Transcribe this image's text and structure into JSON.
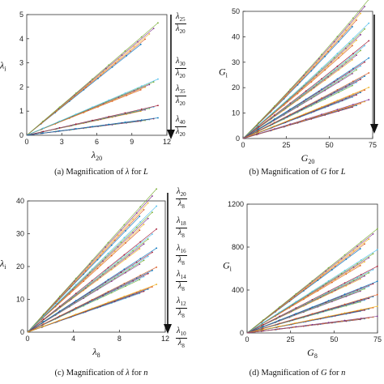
{
  "captions": {
    "a": {
      "pre": "(a) Magnification of ",
      "sym": "λ",
      "mid": " for ",
      "var": "L"
    },
    "b": {
      "pre": "(b) Magnification of ",
      "sym": "G",
      "mid": " for ",
      "var": "L"
    },
    "c": {
      "pre": "(c) Magnification of ",
      "sym": "λ",
      "mid": " for ",
      "var": "n"
    },
    "d": {
      "pre": "(d) Magnification of ",
      "sym": "G",
      "mid": " for ",
      "var": "n"
    }
  },
  "annotations_a": [
    {
      "num_sym": "λ",
      "num_sub": "25",
      "den_sym": "λ",
      "den_sub": "20"
    },
    {
      "num_sym": "λ",
      "num_sub": "30",
      "den_sym": "λ",
      "den_sub": "20"
    },
    {
      "num_sym": "λ",
      "num_sub": "35",
      "den_sym": "λ",
      "den_sub": "20"
    },
    {
      "num_sym": "λ",
      "num_sub": "40",
      "den_sym": "λ",
      "den_sub": "20"
    }
  ],
  "annotations_c": [
    {
      "num_sym": "λ",
      "num_sub": "20",
      "den_sym": "λ",
      "den_sub": "8"
    },
    {
      "num_sym": "λ",
      "num_sub": "18",
      "den_sym": "λ",
      "den_sub": "8"
    },
    {
      "num_sym": "λ",
      "num_sub": "16",
      "den_sym": "λ",
      "den_sub": "8"
    },
    {
      "num_sym": "λ",
      "num_sub": "14",
      "den_sym": "λ",
      "den_sub": "8"
    },
    {
      "num_sym": "λ",
      "num_sub": "12",
      "den_sym": "λ",
      "den_sub": "8"
    },
    {
      "num_sym": "λ",
      "num_sub": "10",
      "den_sym": "λ",
      "den_sub": "8"
    }
  ],
  "colors": {
    "series": [
      "#0072bd",
      "#d95319",
      "#edb120",
      "#7e2f8e",
      "#77ac30",
      "#4dbeee",
      "#a2142f"
    ],
    "axis": "#333333",
    "arrow": "#111111"
  },
  "chart_data": [
    {
      "id": "a",
      "type": "scatter",
      "xlabel": {
        "sym": "λ",
        "sub": "20"
      },
      "ylabel": {
        "sym": "λ",
        "sub": "i"
      },
      "xlim": [
        0,
        12
      ],
      "ylim": [
        0,
        5
      ],
      "xticks": [
        0,
        3,
        6,
        9,
        12
      ],
      "yticks": [
        0,
        1,
        2,
        3,
        4,
        5
      ],
      "xmax_points": 10.5,
      "series": [
        {
          "slope": 0.4
        },
        {
          "slope": 0.2
        },
        {
          "slope": 0.106
        },
        {
          "slope": 0.062
        }
      ]
    },
    {
      "id": "b",
      "type": "scatter",
      "xlabel": {
        "sym": "G",
        "sub": "20"
      },
      "ylabel": {
        "sym": "G",
        "sub": "i"
      },
      "xlim": [
        0,
        75
      ],
      "ylim": [
        0,
        50
      ],
      "xticks": [
        0,
        25,
        50,
        75
      ],
      "yticks": [
        0,
        10,
        20,
        30,
        40,
        50
      ],
      "xmax_points": 68,
      "series": [
        {
          "slope": 0.66,
          "curve": 0.08
        },
        {
          "slope": 0.56,
          "curve": 0.06
        },
        {
          "slope": 0.48,
          "curve": 0.05
        },
        {
          "slope": 0.4,
          "curve": 0.04
        },
        {
          "slope": 0.33,
          "curve": 0.03
        },
        {
          "slope": 0.26,
          "curve": 0.02
        },
        {
          "slope": 0.2,
          "curve": 0.01
        }
      ]
    },
    {
      "id": "c",
      "type": "scatter",
      "xlabel": {
        "sym": "λ",
        "sub": "8"
      },
      "ylabel": {
        "sym": "λ",
        "sub": "i"
      },
      "xlim": [
        0,
        12
      ],
      "ylim": [
        0,
        40
      ],
      "xticks": [
        0,
        4,
        8,
        12
      ],
      "yticks": [
        0,
        10,
        20,
        30,
        40
      ],
      "xmax_points": 10.5,
      "series": [
        {
          "slope": 3.75
        },
        {
          "slope": 3.3
        },
        {
          "slope": 2.7
        },
        {
          "slope": 2.2
        },
        {
          "slope": 1.7
        },
        {
          "slope": 1.25
        }
      ]
    },
    {
      "id": "d",
      "type": "scatter",
      "xlabel": {
        "sym": "G",
        "sub": "8"
      },
      "ylabel": {
        "sym": "G",
        "sub": "i"
      },
      "xlim": [
        0,
        75
      ],
      "ylim": [
        0,
        1200
      ],
      "xticks": [
        0,
        25,
        50,
        75
      ],
      "yticks": [
        0,
        400,
        800,
        1200
      ],
      "xmax_points": 70,
      "series": [
        {
          "slope": 12.5
        },
        {
          "slope": 10.0
        },
        {
          "slope": 8.0
        },
        {
          "slope": 6.2
        },
        {
          "slope": 4.6
        },
        {
          "slope": 3.2
        },
        {
          "slope": 2.0
        }
      ]
    }
  ]
}
